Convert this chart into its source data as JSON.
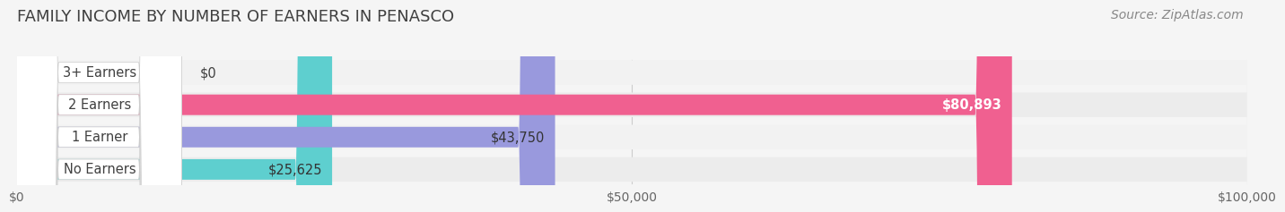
{
  "title": "FAMILY INCOME BY NUMBER OF EARNERS IN PENASCO",
  "source": "Source: ZipAtlas.com",
  "categories": [
    "No Earners",
    "1 Earner",
    "2 Earners",
    "3+ Earners"
  ],
  "values": [
    25625,
    43750,
    80893,
    0
  ],
  "bar_colors": [
    "#5ECFCF",
    "#9999DD",
    "#F06090",
    "#F5C89A"
  ],
  "label_colors": [
    "#333333",
    "#333333",
    "#ffffff",
    "#333333"
  ],
  "value_labels": [
    "$25,625",
    "$43,750",
    "$80,893",
    "$0"
  ],
  "xlim": [
    0,
    100000
  ],
  "xticks": [
    0,
    50000,
    100000
  ],
  "xtick_labels": [
    "$0",
    "$50,000",
    "$100,000"
  ],
  "background_color": "#f5f5f5",
  "bar_bg_color": "#e8e8e8",
  "title_color": "#404040",
  "title_fontsize": 13,
  "bar_height": 0.62,
  "label_fontsize": 10.5,
  "value_fontsize": 10.5,
  "source_fontsize": 10
}
